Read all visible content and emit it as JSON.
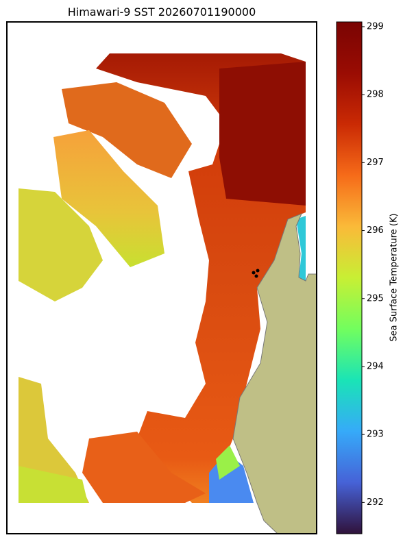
{
  "title": "Himawari-9 SST 20260701190000",
  "colorbar": {
    "label": "Sea Surface Temperature (K)",
    "range": [
      291.54,
      299.07
    ],
    "ticks": [
      292,
      293,
      294,
      295,
      296,
      297,
      298,
      299
    ]
  }
}
